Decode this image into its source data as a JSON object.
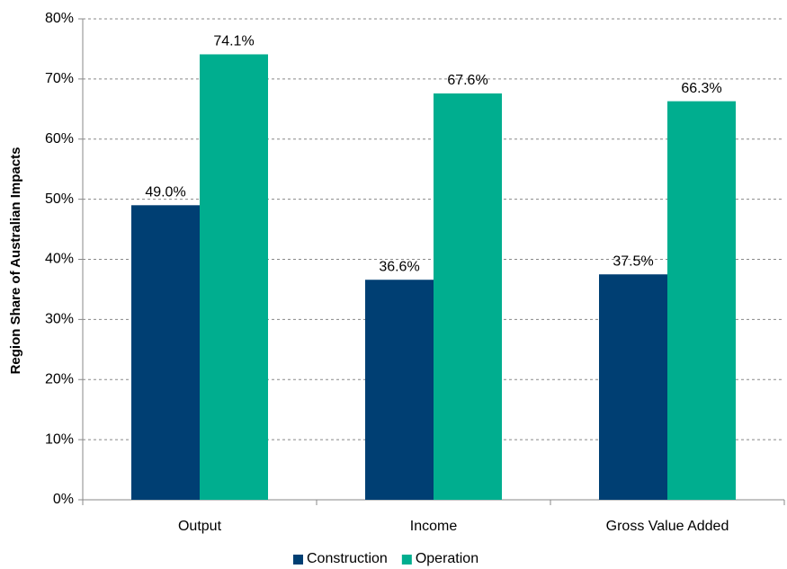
{
  "chart_data": {
    "type": "bar",
    "y_label": "Region Share of Australian Impacts",
    "categories": [
      "Output",
      "Income",
      "Gross Value Added"
    ],
    "series": [
      {
        "name": "Construction",
        "color": "#003f73",
        "values": [
          49.0,
          36.6,
          37.5
        ],
        "value_labels": [
          "49.0%",
          "36.6%",
          "37.5%"
        ]
      },
      {
        "name": "Operation",
        "color": "#00ae8f",
        "values": [
          74.1,
          67.6,
          66.3
        ],
        "value_labels": [
          "74.1%",
          "67.6%",
          "66.3%"
        ]
      }
    ],
    "ylim": [
      0,
      80
    ],
    "yticks": [
      {
        "value": 0,
        "label": "0%"
      },
      {
        "value": 10,
        "label": "10%"
      },
      {
        "value": 20,
        "label": "20%"
      },
      {
        "value": 30,
        "label": "30%"
      },
      {
        "value": 40,
        "label": "40%"
      },
      {
        "value": 50,
        "label": "50%"
      },
      {
        "value": 60,
        "label": "60%"
      },
      {
        "value": 70,
        "label": "70%"
      },
      {
        "value": 80,
        "label": "80%"
      }
    ],
    "grid": true,
    "legend": "bottom"
  }
}
